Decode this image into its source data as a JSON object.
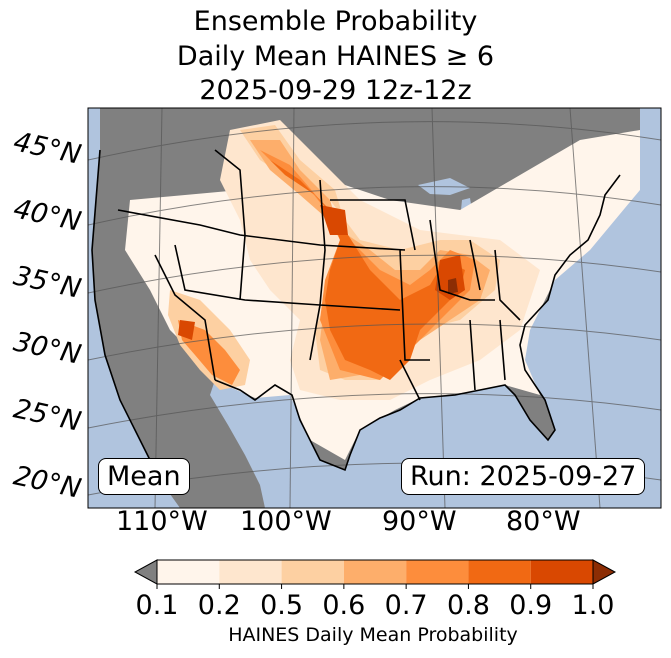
{
  "title": {
    "line1": "Ensemble Probability",
    "line2": "Daily Mean HAINES ≥ 6",
    "line3": "2025-09-29 12z-12z"
  },
  "lat_labels": [
    "45°N",
    "40°N",
    "35°N",
    "30°N",
    "25°N",
    "20°N"
  ],
  "lon_labels": [
    "110°W",
    "100°W",
    "90°W",
    "80°W"
  ],
  "badges": {
    "stat": "Mean",
    "run": "Run: 2025-09-27"
  },
  "colorbar": {
    "ticks": [
      "0.1",
      "0.2",
      "0.5",
      "0.6",
      "0.7",
      "0.8",
      "0.9",
      "1.0"
    ],
    "label": "HAINES Daily Mean Probability",
    "colors": [
      "#fff5eb",
      "#fee6ce",
      "#fdd0a2",
      "#fdae6b",
      "#fd8d3c",
      "#f16913",
      "#d94801",
      "#8c2d04"
    ],
    "under_color": "#808080"
  },
  "map_colors": {
    "ocean": "#b0c4de",
    "no_data": "#808080"
  }
}
